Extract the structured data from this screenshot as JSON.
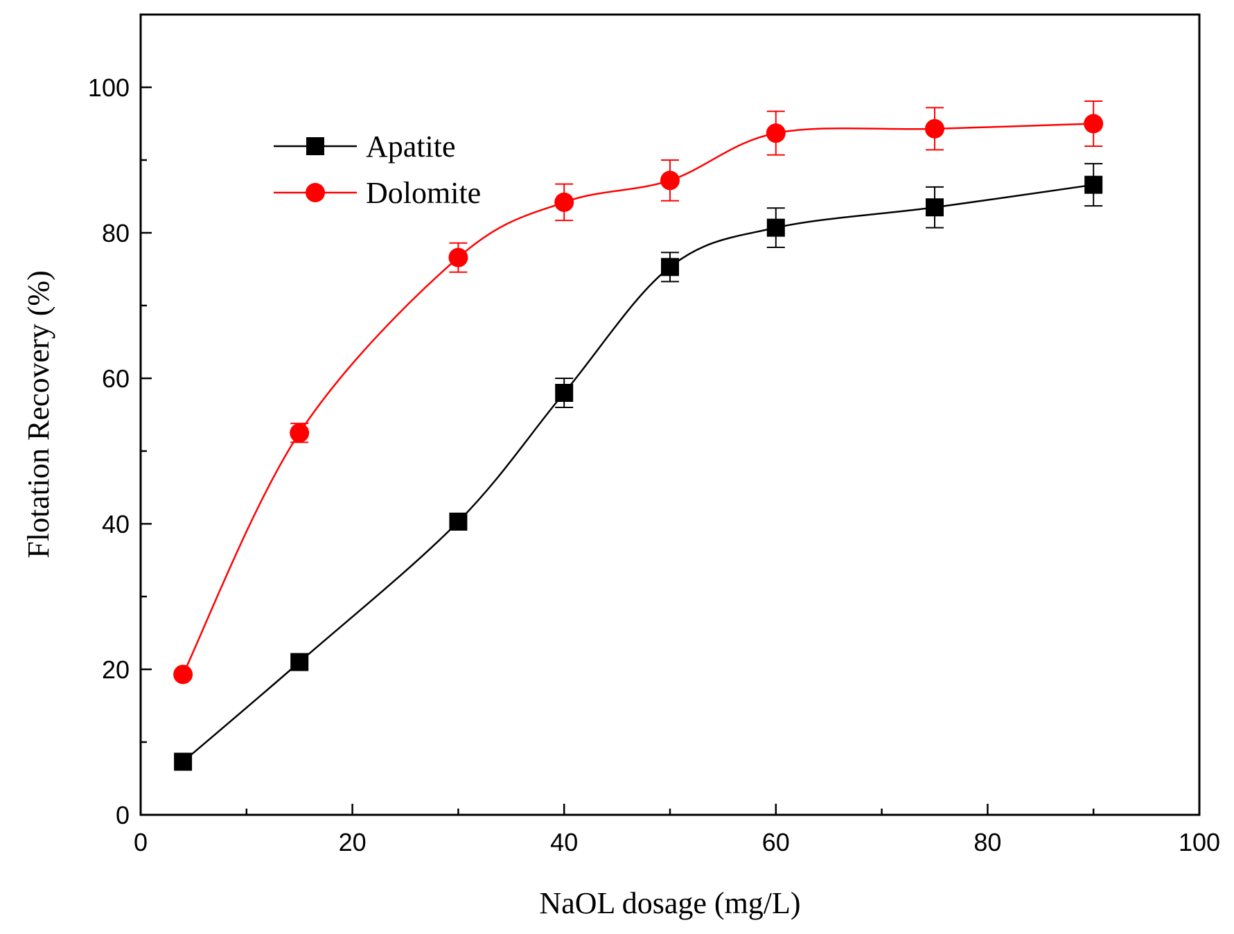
{
  "chart_data": {
    "type": "line",
    "title": "",
    "xlabel": "NaOL dosage (mg/L)",
    "ylabel": "Flotation Recovery (%)",
    "xlim": [
      0,
      100
    ],
    "ylim": [
      0,
      110
    ],
    "x_ticks": [
      0,
      20,
      40,
      60,
      80,
      100
    ],
    "y_ticks": [
      0,
      20,
      40,
      60,
      80,
      100
    ],
    "x_minor_ticks": [
      10,
      30,
      50,
      70,
      90
    ],
    "y_minor_ticks": [
      10,
      30,
      50,
      70,
      90
    ],
    "grid": false,
    "legend_position": "top-left",
    "series": [
      {
        "name": "Apatite",
        "color": "#000000",
        "marker": "square",
        "x": [
          4,
          15,
          30,
          40,
          50,
          60,
          75,
          90
        ],
        "y": [
          7.3,
          21.0,
          40.3,
          58.0,
          75.3,
          80.7,
          83.5,
          86.6
        ],
        "error": [
          0,
          0,
          0,
          2.0,
          2.0,
          2.7,
          2.8,
          2.9
        ]
      },
      {
        "name": "Dolomite",
        "color": "#ff0000",
        "marker": "circle",
        "x": [
          4,
          15,
          30,
          40,
          50,
          60,
          75,
          90
        ],
        "y": [
          19.3,
          52.5,
          76.6,
          84.2,
          87.2,
          93.7,
          94.3,
          95.0
        ],
        "error": [
          0,
          1.3,
          2.0,
          2.5,
          2.8,
          3.0,
          2.9,
          3.1
        ]
      }
    ]
  }
}
